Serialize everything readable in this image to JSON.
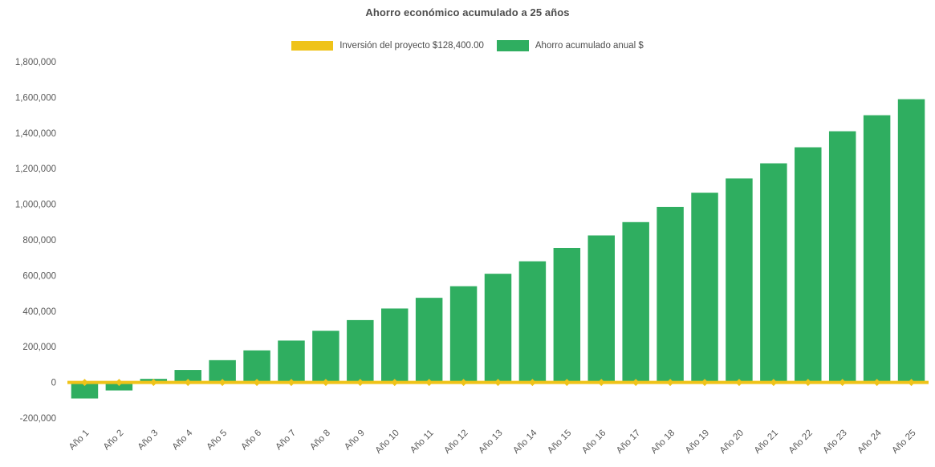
{
  "chart_data": {
    "type": "bar",
    "title": "Ahorro económico acumulado a 25 años",
    "categories": [
      "Año 1",
      "Año 2",
      "Año 3",
      "Año 4",
      "Año 5",
      "Año 6",
      "Año 7",
      "Año 8",
      "Año 9",
      "Año 10",
      "Año 11",
      "Año 12",
      "Año 13",
      "Año 14",
      "Año 15",
      "Año 16",
      "Año 17",
      "Año 18",
      "Año 19",
      "Año 20",
      "Año 21",
      "Año 22",
      "Año 23",
      "Año 24",
      "Año 25"
    ],
    "series": [
      {
        "name": "Inversión del proyecto $128,400.00",
        "type": "line",
        "color": "#EFC319",
        "marker": "diamond",
        "values": [
          0,
          0,
          0,
          0,
          0,
          0,
          0,
          0,
          0,
          0,
          0,
          0,
          0,
          0,
          0,
          0,
          0,
          0,
          0,
          0,
          0,
          0,
          0,
          0,
          0
        ]
      },
      {
        "name": "Ahorro acumulado anual $",
        "type": "bar",
        "color": "#2FAE60",
        "values": [
          -90000,
          -45000,
          20000,
          70000,
          125000,
          180000,
          235000,
          290000,
          350000,
          415000,
          475000,
          540000,
          610000,
          680000,
          755000,
          825000,
          900000,
          985000,
          1065000,
          1145000,
          1230000,
          1320000,
          1410000,
          1500000,
          1590000
        ]
      }
    ],
    "ylim": [
      -200000,
      1800000
    ],
    "ytick_step": 200000,
    "ytick_labels": [
      "-200,000",
      "0",
      "200,000",
      "400,000",
      "600,000",
      "800,000",
      "1,000,000",
      "1,200,000",
      "1,400,000",
      "1,600,000",
      "1,800,000"
    ],
    "grid": false,
    "legend_position": "top",
    "x_label_rotation": -45
  },
  "colors": {
    "background": "#ffffff",
    "axis_text": "#595959",
    "title_text": "#4d4d4d",
    "zero_axis_line": "#d9d9d9"
  }
}
